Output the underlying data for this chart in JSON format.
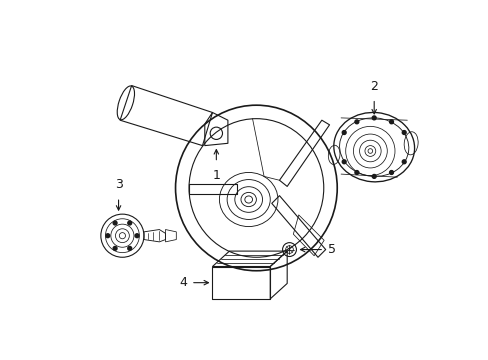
{
  "background_color": "#ffffff",
  "line_color": "#1a1a1a",
  "lw": 0.8,
  "figsize": [
    4.89,
    3.6
  ],
  "dpi": 100
}
